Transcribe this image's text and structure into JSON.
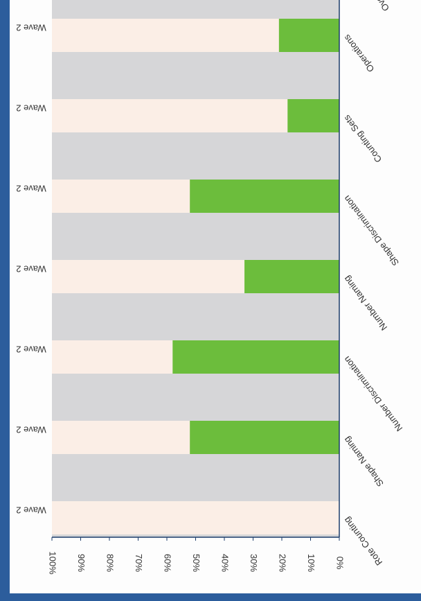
{
  "chart_data": {
    "type": "bar",
    "categories": [
      "Rote Counting",
      "Shape Naming",
      "Number Discrimination",
      "Number Naming",
      "Shape Discrimination",
      "Counting Sets",
      "Operations"
    ],
    "bar_labels": [
      "Wave 2",
      "Wave 2",
      "Wave 2",
      "Wave 2",
      "Wave 2",
      "Wave 2",
      "Wave 2"
    ],
    "values": [
      0,
      52,
      58,
      33,
      52,
      18,
      21
    ],
    "color": "#6cbd3c",
    "remainder_color": "#fbeee6",
    "band_color": "#d6d6d8",
    "xlim": [
      0,
      100
    ],
    "xticks": [
      {
        "value": 0,
        "label": "0%"
      },
      {
        "value": 10,
        "label": "10%"
      },
      {
        "value": 20,
        "label": "20%"
      },
      {
        "value": 30,
        "label": "30%"
      },
      {
        "value": 40,
        "label": "40%"
      },
      {
        "value": 50,
        "label": "50%"
      },
      {
        "value": 60,
        "label": "60%"
      },
      {
        "value": 70,
        "label": "70%"
      },
      {
        "value": 80,
        "label": "80%"
      },
      {
        "value": 90,
        "label": "90%"
      },
      {
        "value": 100,
        "label": "100%"
      }
    ],
    "clipped_label": "Ove"
  }
}
